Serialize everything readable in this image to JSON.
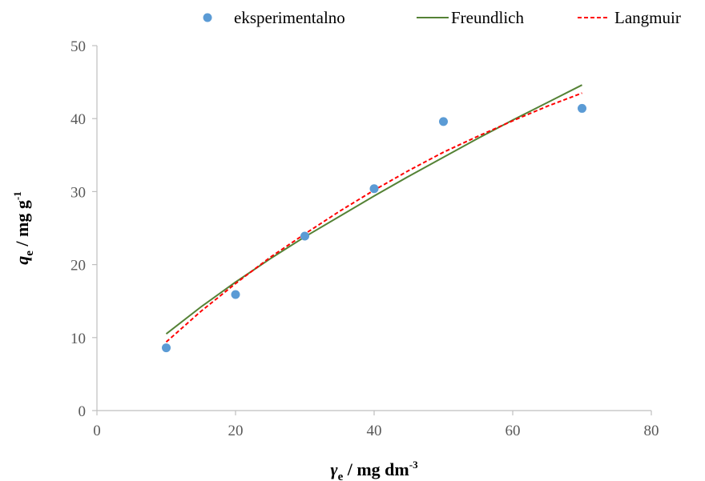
{
  "chart_data": {
    "type": "scatter",
    "xlabel": {
      "symbol": "γ",
      "subscript": "e",
      "unit": " / mg dm",
      "superscript": "-3"
    },
    "ylabel": {
      "symbol": "q",
      "subscript": "e",
      "unit": " / mg g",
      "superscript": "-1"
    },
    "xlim": [
      0,
      80
    ],
    "ylim": [
      0,
      50
    ],
    "x_ticks": [
      0,
      20,
      40,
      60,
      80
    ],
    "y_ticks": [
      0,
      10,
      20,
      30,
      40,
      50
    ],
    "grid": false,
    "legend_position": "top",
    "series": [
      {
        "name": "eksperimentalno",
        "kind": "scatter",
        "color": "#5B9BD5",
        "x": [
          10,
          20,
          30,
          40,
          50,
          70
        ],
        "y": [
          8.6,
          15.9,
          23.9,
          30.4,
          39.6,
          41.4
        ]
      },
      {
        "name": "Freundlich",
        "kind": "line",
        "color": "#548235",
        "dash": "solid",
        "x": [
          10,
          15,
          20,
          25,
          30,
          35,
          40,
          45,
          50,
          55,
          60,
          65,
          70
        ],
        "y": [
          10.5,
          14.2,
          17.6,
          20.8,
          23.8,
          26.6,
          29.4,
          32.1,
          34.7,
          37.3,
          39.8,
          42.2,
          44.6
        ]
      },
      {
        "name": "Langmuir",
        "kind": "line",
        "color": "#FF0000",
        "dash": "dashed",
        "x": [
          10,
          15,
          20,
          25,
          30,
          35,
          40,
          45,
          50,
          55,
          60,
          65,
          70
        ],
        "y": [
          9.4,
          13.6,
          17.4,
          21.0,
          24.2,
          27.3,
          30.2,
          32.9,
          35.4,
          37.6,
          39.7,
          41.7,
          43.5
        ]
      }
    ]
  }
}
